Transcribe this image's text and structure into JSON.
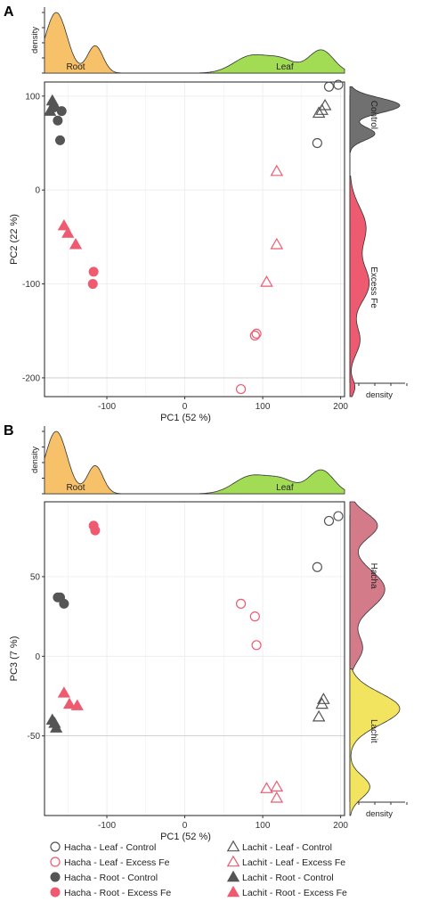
{
  "colors": {
    "control": "#555555",
    "excess": "#ee5a70",
    "root_density": "#f7c16a",
    "leaf_density": "#a2dc55",
    "control_density": "#707070",
    "excess_density": "#ee5a70",
    "hacha_density": "#d47b8a",
    "lachit_density": "#f2e45f",
    "panel_border": "#222222",
    "grid": "#ececec"
  },
  "legend": [
    {
      "cultivar": "Hacha",
      "tissue": "Leaf",
      "treatment": "Control",
      "label": "Hacha - Leaf - Control"
    },
    {
      "cultivar": "Lachit",
      "tissue": "Leaf",
      "treatment": "Control",
      "label": "Lachit - Leaf - Control"
    },
    {
      "cultivar": "Hacha",
      "tissue": "Leaf",
      "treatment": "Excess Fe",
      "label": "Hacha - Leaf - Excess Fe"
    },
    {
      "cultivar": "Lachit",
      "tissue": "Leaf",
      "treatment": "Excess Fe",
      "label": "Lachit - Leaf - Excess Fe"
    },
    {
      "cultivar": "Hacha",
      "tissue": "Root",
      "treatment": "Control",
      "label": "Hacha - Root - Control"
    },
    {
      "cultivar": "Lachit",
      "tissue": "Root",
      "treatment": "Control",
      "label": "Lachit - Root - Control"
    },
    {
      "cultivar": "Hacha",
      "tissue": "Root",
      "treatment": "Excess Fe",
      "label": "Hacha - Root - Excess Fe"
    },
    {
      "cultivar": "Lachit",
      "tissue": "Root",
      "treatment": "Excess Fe",
      "label": "Lachit - Root - Excess Fe"
    }
  ],
  "chart_data": [
    {
      "panel": "A",
      "type": "scatter",
      "xlabel": "PC1 (52 %)",
      "ylabel": "PC2 (22 %)",
      "xlim": [
        -180,
        205
      ],
      "ylim": [
        -220,
        115
      ],
      "xticks": [
        -100,
        0,
        100,
        200
      ],
      "yticks": [
        100,
        0,
        -100,
        -200
      ],
      "grid": true,
      "top_density": {
        "axis_label": "density",
        "groups": [
          {
            "name": "Root",
            "color_key": "root_density",
            "peaks": [
              [
                -165,
                1.0,
                14
              ],
              [
                -115,
                0.45,
                10
              ]
            ]
          },
          {
            "name": "Leaf",
            "color_key": "leaf_density",
            "peaks": [
              [
                85,
                0.28,
                22
              ],
              [
                125,
                0.2,
                18
              ],
              [
                175,
                0.38,
                16
              ]
            ]
          }
        ]
      },
      "side_density": {
        "axis_label": "density",
        "groups": [
          {
            "name": "Control",
            "color_key": "control_density",
            "peaks": [
              [
                90,
                1.0,
                8
              ],
              [
                60,
                0.5,
                7
              ]
            ]
          },
          {
            "name": "Excess Fe",
            "color_key": "excess_density",
            "peaks": [
              [
                -40,
                0.32,
                22
              ],
              [
                -100,
                0.38,
                20
              ],
              [
                -160,
                0.2,
                15
              ],
              [
                -210,
                0.1,
                8
              ]
            ]
          }
        ]
      },
      "points": [
        {
          "group": 0,
          "x": 170,
          "y": 50
        },
        {
          "group": 0,
          "x": 185,
          "y": 110
        },
        {
          "group": 0,
          "x": 197,
          "y": 112
        },
        {
          "group": 1,
          "x": 172,
          "y": 82
        },
        {
          "group": 1,
          "x": 176,
          "y": 85
        },
        {
          "group": 1,
          "x": 180,
          "y": 90
        },
        {
          "group": 2,
          "x": 72,
          "y": -212
        },
        {
          "group": 2,
          "x": 90,
          "y": -155
        },
        {
          "group": 2,
          "x": 92,
          "y": -153
        },
        {
          "group": 3,
          "x": 118,
          "y": 20
        },
        {
          "group": 3,
          "x": 118,
          "y": -58
        },
        {
          "group": 3,
          "x": 105,
          "y": -98
        },
        {
          "group": 4,
          "x": -168,
          "y": 88
        },
        {
          "group": 4,
          "x": -158,
          "y": 84
        },
        {
          "group": 4,
          "x": -163,
          "y": 74
        },
        {
          "group": 4,
          "x": -160,
          "y": 53
        },
        {
          "group": 5,
          "x": -170,
          "y": 95
        },
        {
          "group": 5,
          "x": -173,
          "y": 84
        },
        {
          "group": 5,
          "x": -167,
          "y": 90
        },
        {
          "group": 6,
          "x": -117,
          "y": -87
        },
        {
          "group": 6,
          "x": -118,
          "y": -100
        },
        {
          "group": 7,
          "x": -155,
          "y": -38
        },
        {
          "group": 7,
          "x": -150,
          "y": -46
        },
        {
          "group": 7,
          "x": -140,
          "y": -58
        }
      ]
    },
    {
      "panel": "B",
      "type": "scatter",
      "xlabel": "PC1 (52 %)",
      "ylabel": "PC3 (7 %)",
      "xlim": [
        -180,
        205
      ],
      "ylim": [
        -100,
        97
      ],
      "xticks": [
        -100,
        0,
        100,
        200
      ],
      "yticks": [
        50,
        0,
        -50
      ],
      "grid": true,
      "top_density": {
        "axis_label": "density",
        "groups": [
          {
            "name": "Root",
            "color_key": "root_density",
            "peaks": [
              [
                -165,
                1.0,
                14
              ],
              [
                -115,
                0.45,
                10
              ]
            ]
          },
          {
            "name": "Leaf",
            "color_key": "leaf_density",
            "peaks": [
              [
                85,
                0.28,
                22
              ],
              [
                125,
                0.2,
                18
              ],
              [
                175,
                0.38,
                16
              ]
            ]
          }
        ]
      },
      "side_density": {
        "axis_label": "density",
        "groups": [
          {
            "name": "Hacha",
            "color_key": "hacha_density",
            "peaks": [
              [
                82,
                0.55,
                8
              ],
              [
                42,
                0.7,
                12
              ],
              [
                5,
                0.25,
                8
              ]
            ]
          },
          {
            "name": "Lachit",
            "color_key": "lachit_density",
            "peaks": [
              [
                -33,
                1.0,
                10
              ],
              [
                -82,
                0.4,
                7
              ]
            ]
          }
        ]
      },
      "points": [
        {
          "group": 0,
          "x": 170,
          "y": 56
        },
        {
          "group": 0,
          "x": 185,
          "y": 85
        },
        {
          "group": 0,
          "x": 197,
          "y": 88
        },
        {
          "group": 1,
          "x": 172,
          "y": -38
        },
        {
          "group": 1,
          "x": 176,
          "y": -30
        },
        {
          "group": 1,
          "x": 178,
          "y": -27
        },
        {
          "group": 2,
          "x": 72,
          "y": 33
        },
        {
          "group": 2,
          "x": 90,
          "y": 25
        },
        {
          "group": 2,
          "x": 92,
          "y": 7
        },
        {
          "group": 3,
          "x": 105,
          "y": -83
        },
        {
          "group": 3,
          "x": 118,
          "y": -82
        },
        {
          "group": 3,
          "x": 118,
          "y": -89
        },
        {
          "group": 4,
          "x": -163,
          "y": 37
        },
        {
          "group": 4,
          "x": -160,
          "y": 37
        },
        {
          "group": 4,
          "x": -155,
          "y": 33
        },
        {
          "group": 5,
          "x": -170,
          "y": -40
        },
        {
          "group": 5,
          "x": -167,
          "y": -42
        },
        {
          "group": 5,
          "x": -165,
          "y": -45
        },
        {
          "group": 6,
          "x": -117,
          "y": 82
        },
        {
          "group": 6,
          "x": -115,
          "y": 79
        },
        {
          "group": 7,
          "x": -155,
          "y": -23
        },
        {
          "group": 7,
          "x": -148,
          "y": -30
        },
        {
          "group": 7,
          "x": -138,
          "y": -31
        }
      ]
    }
  ]
}
